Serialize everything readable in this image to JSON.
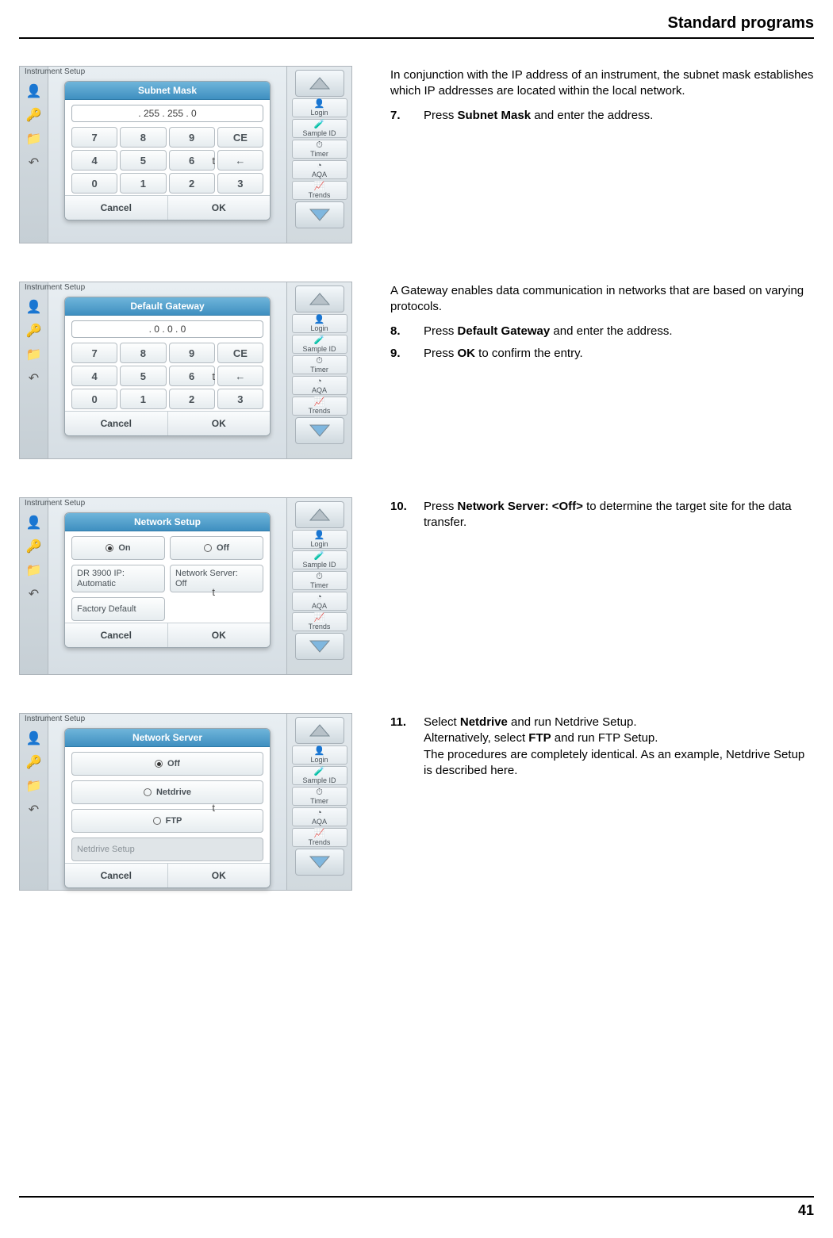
{
  "page": {
    "header_title": "Standard programs",
    "page_number": "41"
  },
  "colors": {
    "dialog_title_bg_start": "#6fb5da",
    "dialog_title_bg_end": "#3f8fc0",
    "ui_bg_start": "#e8eef2",
    "ui_bg_end": "#d6dee4",
    "border": "#aeb5bb",
    "text": "#000000"
  },
  "sidebar_icons": [
    {
      "name": "person-icon",
      "glyph": "👤",
      "color": "#c0392b"
    },
    {
      "name": "key-icon",
      "glyph": "🔑",
      "color": "#2e8b57"
    },
    {
      "name": "folder-icon",
      "glyph": "📁",
      "color": "#c8a24a"
    },
    {
      "name": "undo-icon",
      "glyph": "↶",
      "color": "#555555"
    }
  ],
  "right_panel": {
    "buttons": [
      {
        "label": "Login",
        "icon": "👤"
      },
      {
        "label": "Sample ID",
        "icon": "🧪"
      },
      {
        "label": "Timer",
        "icon": "⏱"
      },
      {
        "label": "AQA",
        "icon": "◔"
      },
      {
        "label": "Trends",
        "icon": "📈"
      }
    ]
  },
  "dialog_common": {
    "topbar_text": "Instrument Setup",
    "keys_row1": [
      "7",
      "8",
      "9",
      "CE"
    ],
    "keys_row2": [
      "4",
      "5",
      "6",
      "←"
    ],
    "keys_row3": [
      "0",
      "1",
      "2",
      "3"
    ],
    "keys_row3_extra": "→",
    "cancel": "Cancel",
    "ok": "OK",
    "stray_label": "t"
  },
  "sections": [
    {
      "figure": {
        "type": "keypad",
        "title": "Subnet Mask",
        "input_value": ". 255 . 255 . 0"
      },
      "paragraphs": [
        "In conjunction with the IP address of an instrument, the subnet mask establishes which IP addresses are located within the local network."
      ],
      "steps": [
        {
          "num": "7.",
          "parts": [
            "Press ",
            {
              "b": "Subnet Mask"
            },
            " and enter the address."
          ]
        }
      ]
    },
    {
      "figure": {
        "type": "keypad",
        "title": "Default Gateway",
        "input_value": ". 0   . 0   . 0"
      },
      "paragraphs": [
        "A Gateway enables data communication in networks that are based on varying protocols."
      ],
      "steps": [
        {
          "num": "8.",
          "parts": [
            "Press ",
            {
              "b": "Default Gateway"
            },
            " and enter the address."
          ]
        },
        {
          "num": "9.",
          "parts": [
            "Press ",
            {
              "b": "OK"
            },
            " to confirm the entry."
          ]
        }
      ]
    },
    {
      "figure": {
        "type": "options",
        "title": "Network Setup",
        "rows": [
          [
            {
              "kind": "radio",
              "label": "On",
              "checked": true
            },
            {
              "kind": "radio",
              "label": "Off",
              "checked": false
            }
          ],
          [
            {
              "kind": "cell",
              "l1": "DR 3900 IP:",
              "l2": "Automatic"
            },
            {
              "kind": "cell",
              "l1": "Network Server:",
              "l2": "Off"
            }
          ],
          [
            {
              "kind": "cell",
              "l1": "Factory Default",
              "wide": false
            },
            {
              "kind": "blank"
            }
          ]
        ]
      },
      "paragraphs": [],
      "steps": [
        {
          "num": "10.",
          "parts": [
            "Press ",
            {
              "b": "Network Server: <Off>"
            },
            " to determine the target site for the data transfer."
          ]
        }
      ]
    },
    {
      "figure": {
        "type": "options",
        "title": "Network Server",
        "rows": [
          [
            {
              "kind": "radio",
              "label": "Off",
              "checked": true,
              "wide": true
            }
          ],
          [
            {
              "kind": "radio",
              "label": "Netdrive",
              "checked": false,
              "wide": true
            }
          ],
          [
            {
              "kind": "radio",
              "label": "FTP",
              "checked": false,
              "wide": true
            }
          ],
          [
            {
              "kind": "cell",
              "l1": "Netdrive Setup",
              "disabled": true,
              "wide": true
            }
          ]
        ]
      },
      "paragraphs": [],
      "steps": [
        {
          "num": "11.",
          "parts": [
            "Select ",
            {
              "b": "Netdrive"
            },
            " and run Netdrive Setup.\nAlternatively, select ",
            {
              "b": "FTP"
            },
            " and run FTP Setup.\nThe procedures are completely identical. As an example, Netdrive Setup is described here."
          ]
        }
      ]
    }
  ]
}
